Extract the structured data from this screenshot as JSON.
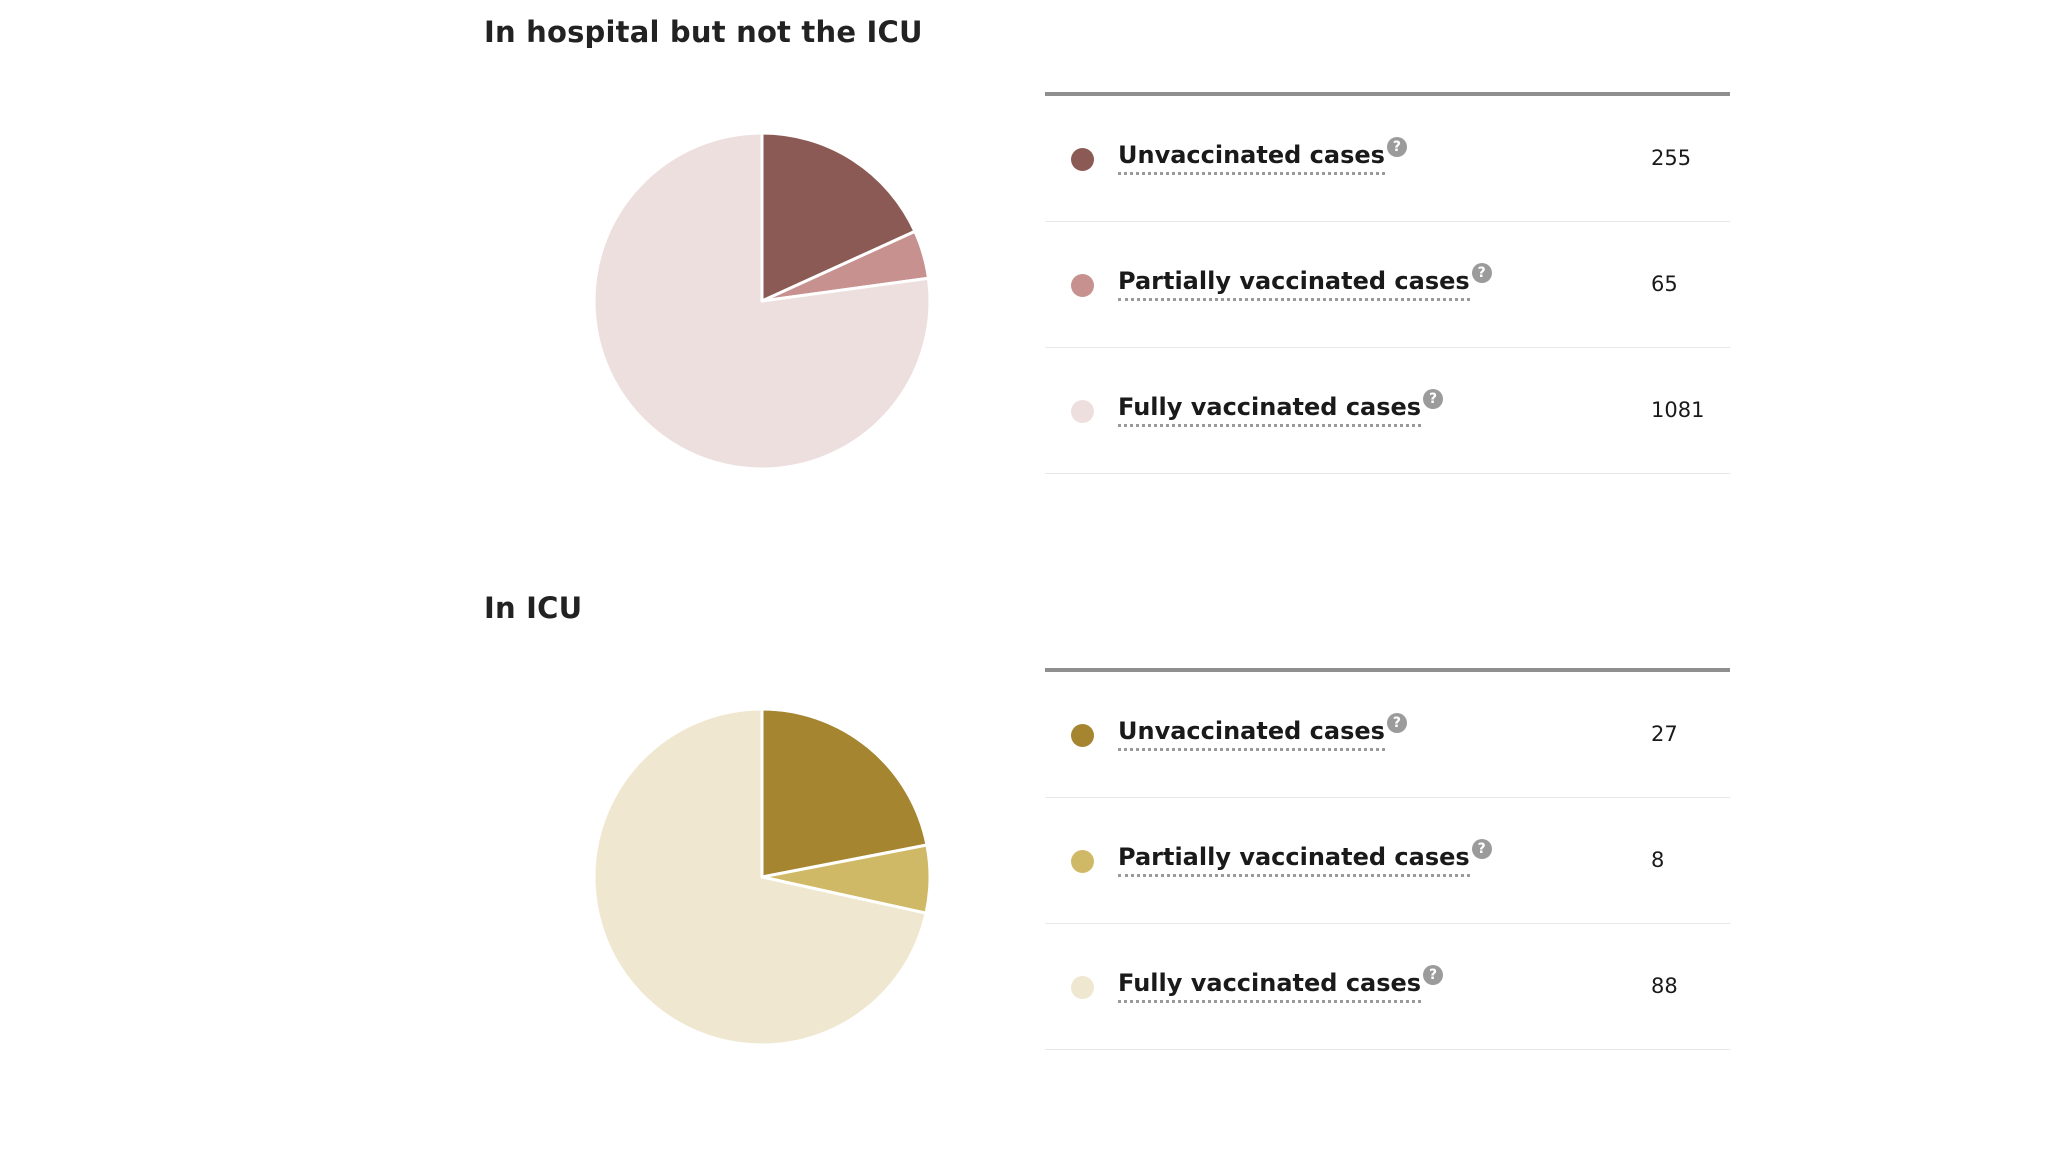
{
  "chart_data": [
    {
      "type": "pie",
      "title": "In hospital but not the ICU",
      "categories": [
        "Unvaccinated cases",
        "Partially vaccinated cases",
        "Fully vaccinated cases"
      ],
      "values": [
        255,
        65,
        1081
      ],
      "colors": [
        "#8b5a54",
        "#c6918e",
        "#eedfdf"
      ],
      "legend": "right"
    },
    {
      "type": "pie",
      "title": "In ICU",
      "categories": [
        "Unvaccinated cases",
        "Partially vaccinated cases",
        "Fully vaccinated cases"
      ],
      "values": [
        27,
        8,
        88
      ],
      "colors": [
        "#a5852f",
        "#d0b966",
        "#efe7d0"
      ],
      "legend": "right"
    }
  ],
  "help_icon": {
    "glyph": "?",
    "icon": "question-circle-icon"
  }
}
